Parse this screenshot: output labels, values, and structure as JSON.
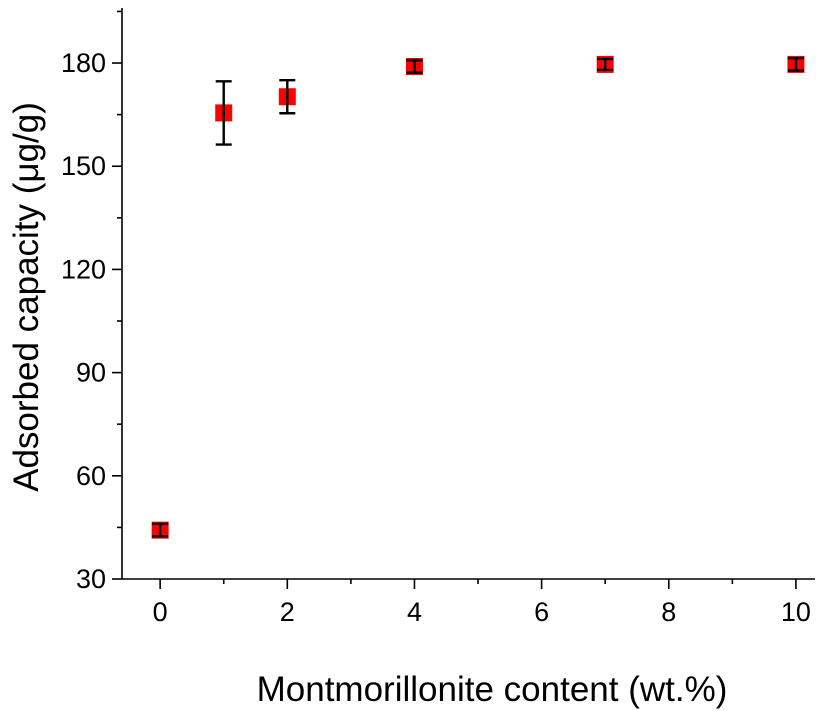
{
  "chart_data": {
    "type": "scatter",
    "title": "",
    "xlabel": "Montmorillonite content (wt.%)",
    "ylabel": "Adsorbed capacity (μg/g)",
    "xlim": [
      -0.6,
      10.3
    ],
    "ylim": [
      30,
      196
    ],
    "x_ticks": [
      0,
      2,
      4,
      6,
      8,
      10
    ],
    "x_tick_labels": [
      "0",
      "2",
      "4",
      "6",
      "8",
      "10"
    ],
    "x_minor_ticks": [
      1,
      3,
      5,
      7,
      9
    ],
    "y_ticks": [
      30,
      60,
      90,
      120,
      150,
      180
    ],
    "y_tick_labels": [
      "30",
      "60",
      "90",
      "120",
      "150",
      "180"
    ],
    "y_minor_ticks": [
      45,
      75,
      105,
      135,
      165,
      195
    ],
    "grid": false,
    "legend": null,
    "series": [
      {
        "marker": "square",
        "color": "#ff0000",
        "error_color": "#000000",
        "points": [
          {
            "x": 0,
            "y": 44.2,
            "err": 1.8
          },
          {
            "x": 1,
            "y": 165.5,
            "err": 9.2
          },
          {
            "x": 2,
            "y": 170.2,
            "err": 4.8
          },
          {
            "x": 4,
            "y": 179.0,
            "err": 1.8
          },
          {
            "x": 7,
            "y": 179.6,
            "err": 1.6
          },
          {
            "x": 10,
            "y": 179.6,
            "err": 1.8
          }
        ]
      }
    ]
  }
}
